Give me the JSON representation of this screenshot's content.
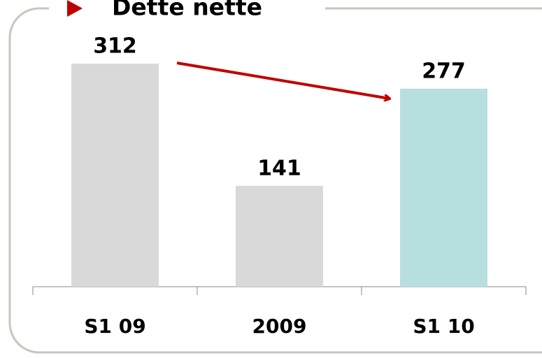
{
  "chart_data": {
    "type": "bar",
    "title": "Dette nette",
    "categories": [
      "S1 09",
      "2009",
      "S1 10"
    ],
    "values": [
      312,
      141,
      277
    ],
    "colors": [
      "#d9d9d9",
      "#d9d9d9",
      "#b7dfe0"
    ]
  }
}
